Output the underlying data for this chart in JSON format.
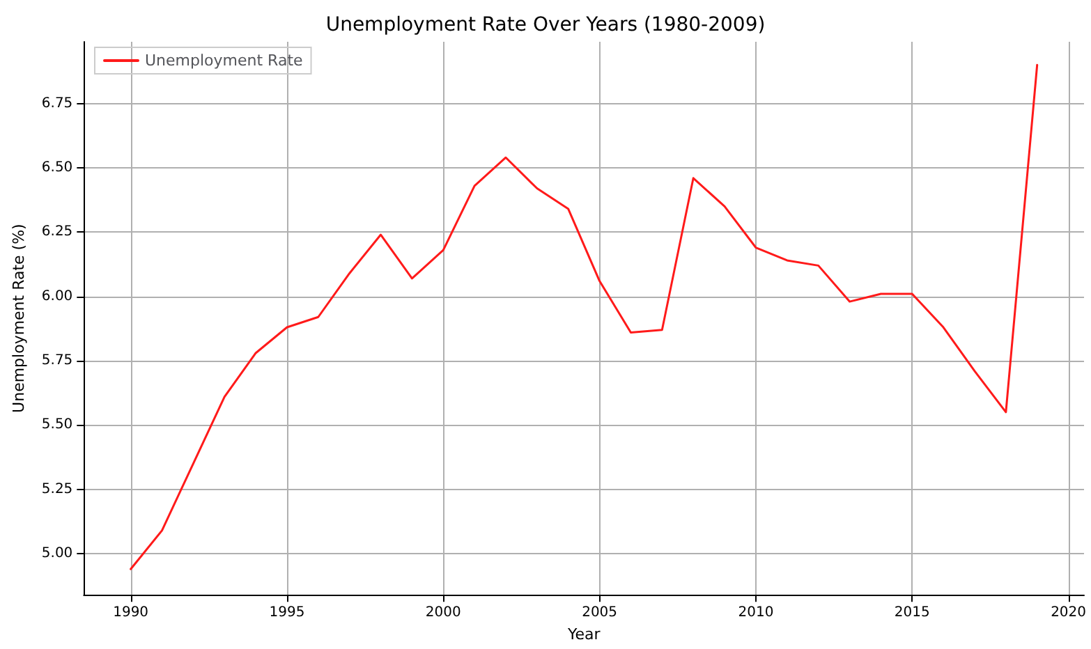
{
  "chart_data": {
    "type": "line",
    "title": "Unemployment Rate Over Years (1980-2009)",
    "xlabel": "Year",
    "ylabel": "Unemployment Rate (%)",
    "x": [
      1990,
      1991,
      1992,
      1993,
      1994,
      1995,
      1996,
      1997,
      1998,
      1999,
      2000,
      2001,
      2002,
      2003,
      2004,
      2005,
      2006,
      2007,
      2008,
      2009,
      2010,
      2011,
      2012,
      2013,
      2014,
      2015,
      2016,
      2017,
      2018,
      2019
    ],
    "series": [
      {
        "name": "Unemployment Rate",
        "color": "#ff1a1a",
        "values": [
          4.94,
          5.09,
          5.35,
          5.61,
          5.78,
          5.88,
          5.92,
          6.09,
          6.24,
          6.07,
          6.18,
          6.43,
          6.54,
          6.42,
          6.34,
          6.06,
          5.86,
          5.87,
          6.46,
          6.35,
          6.19,
          6.14,
          6.12,
          5.98,
          6.01,
          6.01,
          5.88,
          5.71,
          5.55,
          6.9
        ]
      }
    ],
    "xlim": [
      1988.5,
      2020.5
    ],
    "xticks": [
      1990,
      1995,
      2000,
      2005,
      2010,
      2015,
      2020
    ],
    "ylim": [
      4.84,
      6.99
    ],
    "yticks": [
      {
        "value": 5,
        "label": "5.00"
      },
      {
        "value": 5.25,
        "label": "5.25"
      },
      {
        "value": 5.5,
        "label": "5.50"
      },
      {
        "value": 5.75,
        "label": "5.75"
      },
      {
        "value": 6,
        "label": "6.00"
      },
      {
        "value": 6.25,
        "label": "6.25"
      },
      {
        "value": 6.5,
        "label": "6.50"
      },
      {
        "value": 6.75,
        "label": "6.75"
      }
    ],
    "grid": true,
    "legend": "top left",
    "marker": "none",
    "line_style": "solid"
  }
}
